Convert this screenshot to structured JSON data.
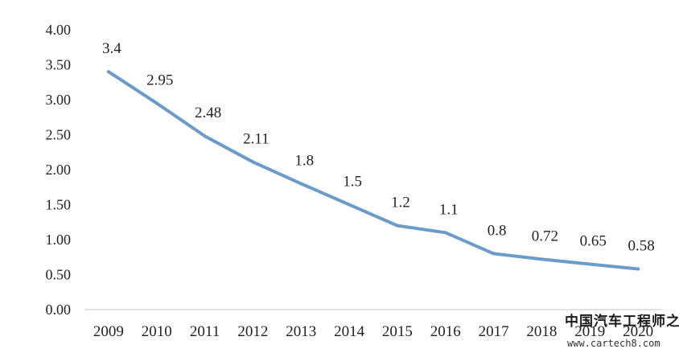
{
  "chart_data": {
    "type": "line",
    "categories": [
      "2009",
      "2010",
      "2011",
      "2012",
      "2013",
      "2014",
      "2015",
      "2016",
      "2017",
      "2018",
      "2019",
      "2020"
    ],
    "series": [
      {
        "values": [
          3.4,
          2.95,
          2.48,
          2.11,
          1.8,
          1.5,
          1.2,
          1.1,
          0.8,
          0.72,
          0.65,
          0.58
        ],
        "labels": [
          "3.4",
          "2.95",
          "2.48",
          "2.11",
          "1.8",
          "1.5",
          "1.2",
          "1.1",
          "0.8",
          "0.72",
          "0.65",
          "0.58"
        ],
        "color": "#6a9bc9"
      }
    ],
    "yticks": [
      "0.00",
      "0.50",
      "1.00",
      "1.50",
      "2.00",
      "2.50",
      "3.00",
      "3.50",
      "4.00"
    ],
    "ylim": [
      0,
      4
    ],
    "grid": false,
    "legend": "none"
  },
  "watermark": {
    "name": "中国汽车工程师之家",
    "url": "www.cartech8.com"
  }
}
